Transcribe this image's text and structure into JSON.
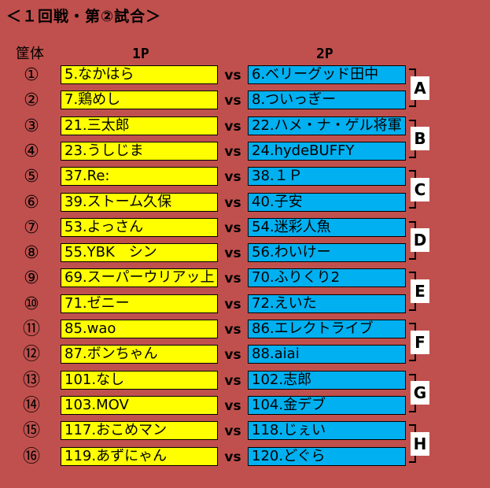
{
  "title": "＜１回戦・第②試合＞",
  "headers": {
    "kotai": "筐体",
    "p1": "1P",
    "p2": "2P"
  },
  "vs_label": "vs",
  "matches": [
    {
      "num": "①",
      "p1": "5.なかはら",
      "p2": "6.ベリーグッド田中"
    },
    {
      "num": "②",
      "p1": "7.鶏めし",
      "p2": "8.ついっぎー"
    },
    {
      "num": "③",
      "p1": "21.三太郎",
      "p2": "22.ハメ・ナ・ゲル将軍"
    },
    {
      "num": "④",
      "p1": "23.うしじま",
      "p2": "24.hydeBUFFY"
    },
    {
      "num": "⑤",
      "p1": "37.Re:",
      "p2": "38.１Ｐ"
    },
    {
      "num": "⑥",
      "p1": "39.ストーム久保",
      "p2": "40.子安"
    },
    {
      "num": "⑦",
      "p1": "53.よっさん",
      "p2": "54.迷彩人魚"
    },
    {
      "num": "⑧",
      "p1": "55.YBK　シン",
      "p2": "56.わいけー"
    },
    {
      "num": "⑨",
      "p1": "69.スーパーウリアッ上",
      "p2": "70.ふりくり2"
    },
    {
      "num": "⑩",
      "p1": "71.ゼニー",
      "p2": "72.えいた"
    },
    {
      "num": "⑪",
      "p1": "85.wao",
      "p2": "86.エレクトライブ"
    },
    {
      "num": "⑫",
      "p1": "87.ボンちゃん",
      "p2": "88.aiai"
    },
    {
      "num": "⑬",
      "p1": "101.なし",
      "p2": "102.志郎"
    },
    {
      "num": "⑭",
      "p1": "103.MOV",
      "p2": "104.金デブ"
    },
    {
      "num": "⑮",
      "p1": "117.おこめマン",
      "p2": "118.じぇい"
    },
    {
      "num": "⑯",
      "p1": "119.あずにゃん",
      "p2": "120.どぐら"
    }
  ],
  "groups": [
    "A",
    "B",
    "C",
    "D",
    "E",
    "F",
    "G",
    "H"
  ],
  "colors": {
    "background": "#c0504d",
    "p1_fill": "#ffff00",
    "p2_fill": "#00b0f0"
  }
}
